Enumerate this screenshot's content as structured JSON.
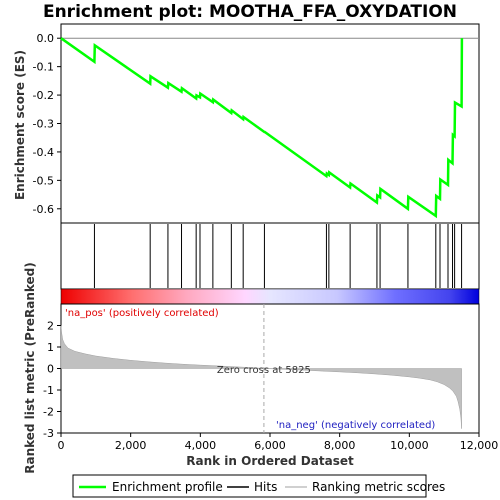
{
  "chart_data": {
    "type": "line",
    "title": "Enrichment plot: MOOTHA_FFA_OXYDATION",
    "xlabel": "Rank in Ordered Dataset",
    "xlim": [
      0,
      12000
    ],
    "x_ticks": [
      "0",
      "2,000",
      "4,000",
      "6,000",
      "8,000",
      "10,000",
      "12,000"
    ],
    "es_panel": {
      "ylabel": "Enrichment score (ES)",
      "ylim": [
        -0.65,
        0.05
      ],
      "y_ticks": [
        "0.0",
        "-0.1",
        "-0.2",
        "-0.3",
        "-0.4",
        "-0.5",
        "-0.6"
      ],
      "series": [
        {
          "name": "Enrichment profile",
          "color": "#00ff00",
          "x": [
            0,
            960,
            970,
            2560,
            2570,
            3070,
            3080,
            3460,
            3470,
            3880,
            3890,
            3990,
            4000,
            4360,
            4370,
            4890,
            4900,
            5230,
            5240,
            5840,
            5850,
            7620,
            7630,
            7690,
            7700,
            8300,
            8310,
            9070,
            9080,
            9160,
            9170,
            9960,
            9970,
            10760,
            10770,
            10880,
            10890,
            11110,
            11120,
            11240,
            11250,
            11300,
            11310,
            11500,
            11510
          ],
          "y": [
            0.0,
            -0.083,
            -0.025,
            -0.16,
            -0.134,
            -0.174,
            -0.158,
            -0.188,
            -0.176,
            -0.212,
            -0.201,
            -0.208,
            -0.195,
            -0.225,
            -0.216,
            -0.263,
            -0.254,
            -0.285,
            -0.277,
            -0.33,
            -0.33,
            -0.485,
            -0.476,
            -0.481,
            -0.472,
            -0.525,
            -0.511,
            -0.578,
            -0.553,
            -0.56,
            -0.53,
            -0.6,
            -0.558,
            -0.625,
            -0.555,
            -0.565,
            -0.497,
            -0.516,
            -0.428,
            -0.44,
            -0.34,
            -0.345,
            -0.226,
            -0.24,
            0.0
          ]
        }
      ]
    },
    "hits": [
      960,
      2560,
      3070,
      3460,
      3880,
      3990,
      4360,
      4890,
      5230,
      5840,
      7620,
      7690,
      8300,
      9070,
      9160,
      9960,
      10760,
      10880,
      11110,
      11240,
      11300,
      11500
    ],
    "metric_panel": {
      "ylabel": "Ranked list metric (PreRanked)",
      "ylim": [
        -3,
        3
      ],
      "y_ticks": [
        "2",
        "1",
        "0",
        "-1",
        "-2",
        "-3"
      ],
      "zero_cross": 5825,
      "metric_curve": {
        "x": [
          0,
          20,
          50,
          100,
          200,
          400,
          700,
          1000,
          1500,
          2000,
          2500,
          3000,
          3500,
          4000,
          4500,
          5000,
          5500,
          5825,
          6500,
          7000,
          7500,
          8000,
          8500,
          9000,
          9500,
          10000,
          10300,
          10600,
          10800,
          11000,
          11150,
          11250,
          11350,
          11400,
          11450,
          11480,
          11500
        ],
        "y": [
          2.0,
          1.65,
          1.35,
          1.15,
          0.95,
          0.8,
          0.68,
          0.58,
          0.47,
          0.38,
          0.31,
          0.25,
          0.2,
          0.16,
          0.12,
          0.08,
          0.04,
          0.0,
          -0.04,
          -0.08,
          -0.12,
          -0.16,
          -0.2,
          -0.25,
          -0.31,
          -0.39,
          -0.45,
          -0.53,
          -0.62,
          -0.75,
          -0.9,
          -1.05,
          -1.3,
          -1.55,
          -1.9,
          -2.3,
          -2.8
        ]
      },
      "pos_label": "'na_pos' (positively correlated)",
      "neg_label": "'na_neg' (negatively correlated)",
      "zero_label": "Zero cross at 5825"
    },
    "legend": {
      "placement": "bottom",
      "items": [
        {
          "label": "Enrichment profile",
          "color": "#00ff00",
          "kind": "line"
        },
        {
          "label": "Hits",
          "color": "#000000",
          "kind": "line"
        },
        {
          "label": "Ranking metric scores",
          "color": "#c0c0c0",
          "kind": "line"
        }
      ]
    },
    "colors": {
      "pos_text": "#e00000",
      "neg_text": "#2020c0",
      "metric_fill": "#c0c0c0"
    }
  }
}
